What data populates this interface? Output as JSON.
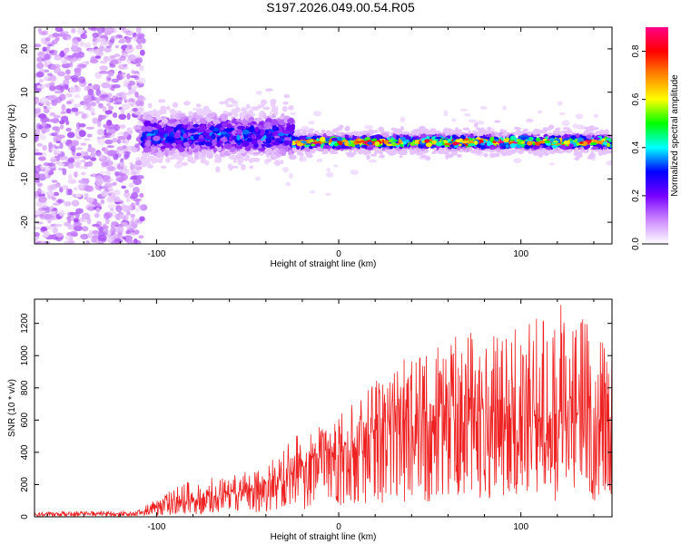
{
  "title": "S197.2026.049.00.54.R05",
  "chart_data": [
    {
      "type": "heatmap",
      "name": "spectrogram",
      "xlabel": "Height of straight line (km)",
      "ylabel": "Frequency (Hz)",
      "xlim": [
        -167,
        150
      ],
      "ylim": [
        -25,
        25
      ],
      "xticks": [
        -100,
        0,
        100
      ],
      "yticks": [
        -20,
        -10,
        0,
        10,
        20
      ],
      "colorbar": {
        "label": "Normalized spectral amplitude",
        "range": [
          0,
          0.9
        ],
        "ticks": [
          0.0,
          0.2,
          0.4,
          0.6,
          0.8
        ],
        "colormap": [
          "#ffffff",
          "#cc88ff",
          "#7700ff",
          "#0000ff",
          "#00ffff",
          "#00ff00",
          "#ffff00",
          "#ff8800",
          "#ff0000",
          "#ff0088"
        ]
      },
      "regions": [
        {
          "x": [
            -167,
            -107
          ],
          "freq_center": 0,
          "freq_spread": 25,
          "amplitude": 0.1,
          "description": "diffuse noise"
        },
        {
          "x": [
            -107,
            -25
          ],
          "freq_center": 0,
          "freq_spread": 5,
          "amplitude": 0.3
        },
        {
          "x": [
            -25,
            150
          ],
          "freq_center": -1.5,
          "freq_spread": 2.5,
          "amplitude": 0.85
        }
      ]
    },
    {
      "type": "line",
      "name": "snr",
      "xlabel": "Height of straight line (km)",
      "ylabel": "SNR (10 * v/v)",
      "xlim": [
        -167,
        150
      ],
      "ylim": [
        0,
        1350
      ],
      "xticks": [
        -100,
        0,
        100
      ],
      "yticks": [
        0,
        200,
        400,
        600,
        800,
        1000,
        1200
      ],
      "color": "#ee2222",
      "envelope": {
        "x": [
          -167,
          -110,
          -100,
          -80,
          -60,
          -40,
          -25,
          -12,
          0,
          10,
          25,
          40,
          60,
          80,
          100,
          120,
          150
        ],
        "mean": [
          15,
          20,
          60,
          110,
          140,
          200,
          260,
          380,
          380,
          470,
          560,
          560,
          610,
          630,
          610,
          630,
          600
        ],
        "peak": [
          30,
          40,
          120,
          240,
          260,
          330,
          480,
          650,
          690,
          740,
          900,
          1050,
          1100,
          1200,
          1180,
          1350,
          1100
        ]
      }
    }
  ]
}
